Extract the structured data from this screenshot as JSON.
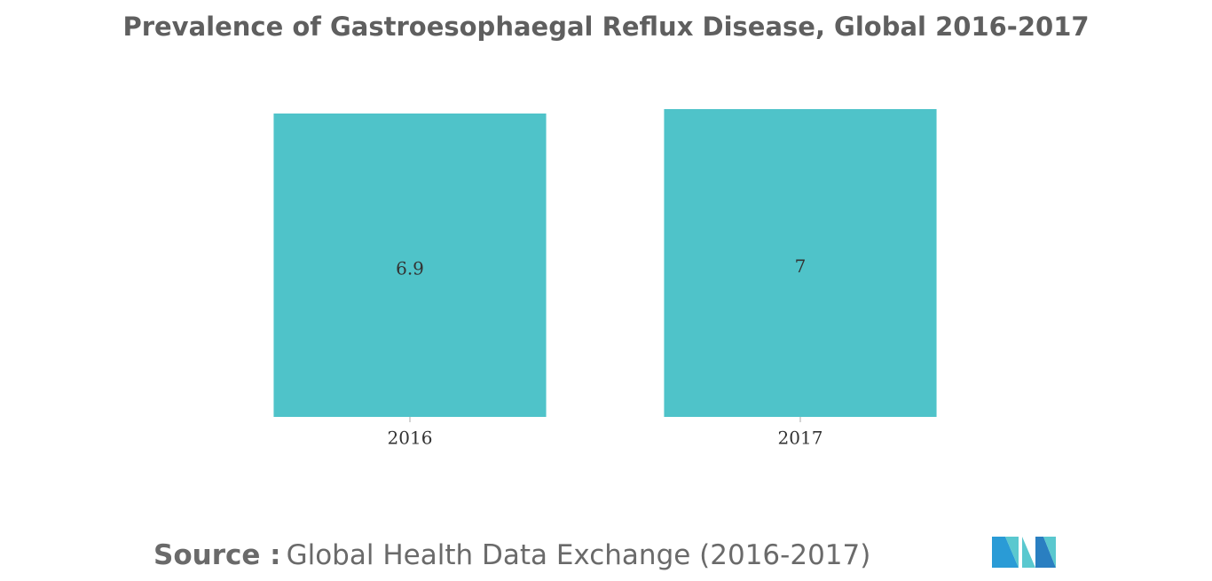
{
  "chart_data": {
    "type": "bar",
    "title": "Prevalence of Gastroesophaegal Reflux Disease, Global 2016-2017",
    "categories": [
      "2016",
      "2017"
    ],
    "values": [
      6.9,
      7
    ],
    "color": "#4fc3c9"
  },
  "source": {
    "label": "Source :",
    "text": "Global Health Data Exchange (2016-2017)"
  }
}
